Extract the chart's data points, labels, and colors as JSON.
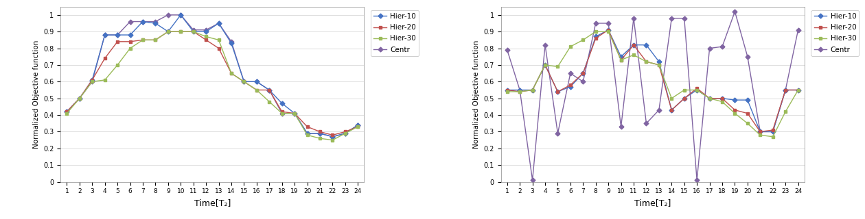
{
  "left": {
    "x": [
      1,
      2,
      3,
      4,
      5,
      6,
      7,
      8,
      9,
      10,
      11,
      12,
      13,
      14,
      15,
      16,
      17,
      18,
      19,
      20,
      21,
      22,
      23,
      24
    ],
    "hier10": [
      0.42,
      0.5,
      0.61,
      0.88,
      0.88,
      0.88,
      0.96,
      0.95,
      0.9,
      1.0,
      0.9,
      0.9,
      0.95,
      0.83,
      0.6,
      0.6,
      0.55,
      0.47,
      0.41,
      0.29,
      0.29,
      0.27,
      0.29,
      0.34
    ],
    "hier20": [
      0.42,
      0.5,
      0.61,
      0.74,
      0.84,
      0.84,
      0.85,
      0.85,
      0.9,
      0.9,
      0.9,
      0.85,
      0.8,
      0.65,
      0.6,
      0.55,
      0.55,
      0.42,
      0.41,
      0.33,
      0.3,
      0.28,
      0.3,
      0.33
    ],
    "hier30": [
      0.41,
      0.5,
      0.6,
      0.61,
      0.7,
      0.8,
      0.85,
      0.85,
      0.9,
      0.9,
      0.9,
      0.87,
      0.85,
      0.65,
      0.6,
      0.55,
      0.48,
      0.41,
      0.41,
      0.28,
      0.26,
      0.25,
      0.29,
      0.33
    ],
    "centr": [
      0.42,
      0.5,
      0.6,
      0.88,
      0.88,
      0.96,
      0.96,
      0.96,
      1.0,
      1.0,
      0.91,
      0.91,
      0.95,
      0.84,
      0.6,
      0.6,
      0.55,
      0.41,
      0.41,
      0.29,
      0.29,
      0.27,
      0.29,
      0.34
    ],
    "ylabel": "Normalized Objective function",
    "xlabel": "Time[T₂]",
    "ylim": [
      0,
      1.05
    ],
    "yticks": [
      0,
      0.1,
      0.2,
      0.3,
      0.4,
      0.5,
      0.6,
      0.7,
      0.8,
      0.9,
      1
    ]
  },
  "right": {
    "x": [
      1,
      2,
      3,
      4,
      5,
      6,
      7,
      8,
      9,
      10,
      11,
      12,
      13,
      14,
      15,
      16,
      17,
      18,
      19,
      20,
      21,
      22,
      23,
      24
    ],
    "hier10": [
      0.55,
      0.55,
      0.55,
      0.7,
      0.54,
      0.57,
      0.65,
      0.87,
      0.91,
      0.75,
      0.82,
      0.82,
      0.72,
      0.43,
      0.5,
      0.55,
      0.5,
      0.5,
      0.49,
      0.49,
      0.3,
      0.3,
      0.55,
      0.55
    ],
    "hier20": [
      0.55,
      0.54,
      0.55,
      0.7,
      0.54,
      0.58,
      0.65,
      0.86,
      0.91,
      0.73,
      0.82,
      0.72,
      0.7,
      0.43,
      0.5,
      0.56,
      0.5,
      0.5,
      0.43,
      0.41,
      0.3,
      0.31,
      0.55,
      0.55
    ],
    "hier30": [
      0.54,
      0.54,
      0.55,
      0.7,
      0.69,
      0.81,
      0.85,
      0.9,
      0.9,
      0.73,
      0.76,
      0.72,
      0.7,
      0.5,
      0.55,
      0.55,
      0.5,
      0.48,
      0.41,
      0.35,
      0.28,
      0.27,
      0.42,
      0.55
    ],
    "centr": [
      0.79,
      0.55,
      0.01,
      0.82,
      0.29,
      0.65,
      0.6,
      0.95,
      0.95,
      0.33,
      0.98,
      0.35,
      0.43,
      0.98,
      0.98,
      0.01,
      0.8,
      0.81,
      1.02,
      0.75,
      0.3,
      0.3,
      0.55,
      0.91
    ],
    "ylabel": "Normalized Objective function",
    "xlabel": "Time[T₂]",
    "ylim": [
      0,
      1.05
    ],
    "yticks": [
      0,
      0.1,
      0.2,
      0.3,
      0.4,
      0.5,
      0.6,
      0.7,
      0.8,
      0.9,
      1
    ]
  },
  "colors": {
    "hier10": "#4472C4",
    "hier20": "#C0504D",
    "hier30": "#9BBB59",
    "centr": "#8064A2"
  },
  "legend_labels": [
    "Hier-10",
    "Hier-20",
    "Hier-30",
    "Centr"
  ],
  "marker_size": 3.5,
  "linewidth": 1.0
}
